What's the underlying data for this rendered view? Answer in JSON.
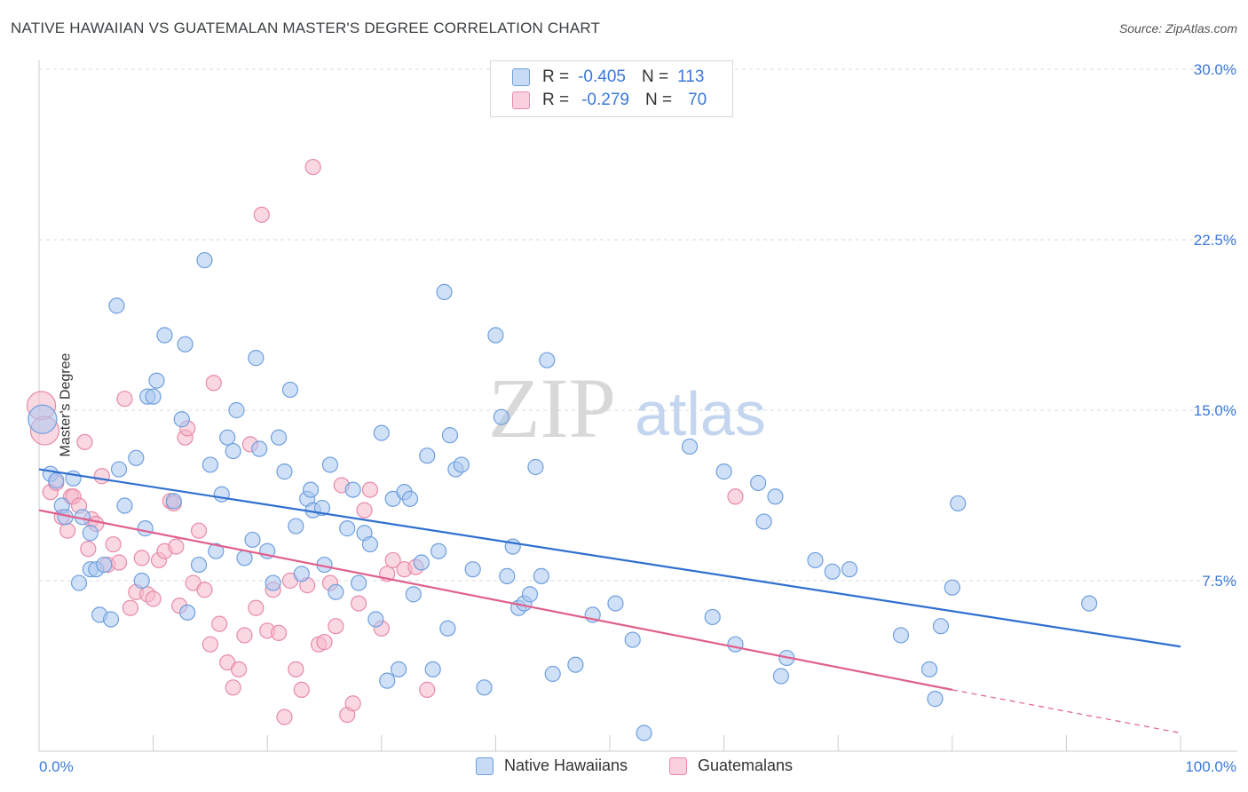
{
  "title": "NATIVE HAWAIIAN VS GUATEMALAN MASTER'S DEGREE CORRELATION CHART",
  "source": "Source: ZipAtlas.com",
  "watermark": {
    "zip": "ZIP",
    "atlas": "atlas"
  },
  "legend_top": {
    "rows": [
      {
        "r_label": "R =",
        "r_value": "-0.405",
        "n_label": "N =",
        "n_value": "113"
      },
      {
        "r_label": "R =",
        "r_value": "-0.279",
        "n_label": "N =",
        "n_value": "70"
      }
    ]
  },
  "colors": {
    "blue_fill": "#aac8f0",
    "blue_stroke": "#6f9fde",
    "blue_line": "#2f6fcf",
    "pink_fill": "#f5b8cb",
    "pink_stroke": "#e88aa8",
    "pink_line": "#e0608c",
    "axis_text": "#3b78d8",
    "grid": "#d9d9d9"
  },
  "chart_data": {
    "type": "scatter",
    "title": "NATIVE HAWAIIAN VS GUATEMALAN MASTER'S DEGREE CORRELATION CHART",
    "xlabel": "",
    "ylabel": "Master's Degree",
    "xlim": [
      0,
      100
    ],
    "ylim": [
      0,
      30
    ],
    "x_tick_labels": [
      "0.0%",
      "100.0%"
    ],
    "y_ticks": [
      7.5,
      15.0,
      22.5,
      30.0
    ],
    "y_tick_labels": [
      "7.5%",
      "15.0%",
      "22.5%",
      "30.0%"
    ],
    "grid": "horizontal dashed",
    "legend_placement": "top-center and bottom",
    "series": [
      {
        "name": "Native Hawaiians",
        "r": -0.405,
        "n": 113,
        "trend": {
          "x": [
            0,
            100
          ],
          "y": [
            12.4,
            4.6
          ]
        },
        "points": [
          [
            0.3,
            14.6
          ],
          [
            1,
            12.2
          ],
          [
            1.5,
            11.9
          ],
          [
            2,
            10.8
          ],
          [
            2.3,
            10.3
          ],
          [
            3,
            12
          ],
          [
            3.5,
            7.4
          ],
          [
            3.8,
            10.3
          ],
          [
            4.5,
            9.6
          ],
          [
            4.5,
            8
          ],
          [
            5,
            8
          ],
          [
            5.3,
            6
          ],
          [
            5.7,
            8.2
          ],
          [
            6.3,
            5.8
          ],
          [
            6.8,
            19.6
          ],
          [
            7,
            12.4
          ],
          [
            7.5,
            10.8
          ],
          [
            8.5,
            12.9
          ],
          [
            9,
            7.5
          ],
          [
            9.3,
            9.8
          ],
          [
            9.5,
            15.6
          ],
          [
            10,
            15.6
          ],
          [
            10.3,
            16.3
          ],
          [
            11,
            18.3
          ],
          [
            11.8,
            11
          ],
          [
            12.5,
            14.6
          ],
          [
            12.8,
            17.9
          ],
          [
            13,
            6.1
          ],
          [
            14,
            8.2
          ],
          [
            14.5,
            21.6
          ],
          [
            15,
            12.6
          ],
          [
            15.5,
            8.8
          ],
          [
            16,
            11.3
          ],
          [
            16.5,
            13.8
          ],
          [
            17,
            13.2
          ],
          [
            17.3,
            15
          ],
          [
            18,
            8.5
          ],
          [
            18.7,
            9.3
          ],
          [
            19,
            17.3
          ],
          [
            19.3,
            13.3
          ],
          [
            20,
            8.8
          ],
          [
            20.5,
            7.4
          ],
          [
            21,
            13.8
          ],
          [
            21.5,
            12.3
          ],
          [
            22,
            15.9
          ],
          [
            22.5,
            9.9
          ],
          [
            23,
            7.8
          ],
          [
            23.5,
            11.1
          ],
          [
            23.8,
            11.5
          ],
          [
            24,
            10.6
          ],
          [
            24.8,
            10.7
          ],
          [
            25,
            8.2
          ],
          [
            25.5,
            12.6
          ],
          [
            26,
            7
          ],
          [
            27,
            9.8
          ],
          [
            27.5,
            11.5
          ],
          [
            28,
            7.4
          ],
          [
            28.5,
            9.6
          ],
          [
            29,
            9.1
          ],
          [
            29.5,
            5.8
          ],
          [
            30,
            14
          ],
          [
            30.5,
            3.1
          ],
          [
            31,
            11.1
          ],
          [
            31.5,
            3.6
          ],
          [
            32,
            11.4
          ],
          [
            32.5,
            11.1
          ],
          [
            32.8,
            6.9
          ],
          [
            33.5,
            8.3
          ],
          [
            34,
            13
          ],
          [
            34.5,
            3.6
          ],
          [
            35,
            8.8
          ],
          [
            35.5,
            20.2
          ],
          [
            35.8,
            5.4
          ],
          [
            36,
            13.9
          ],
          [
            36.5,
            12.4
          ],
          [
            37,
            12.6
          ],
          [
            38,
            8
          ],
          [
            39,
            2.8
          ],
          [
            40,
            18.3
          ],
          [
            40.5,
            14.7
          ],
          [
            41,
            7.7
          ],
          [
            41.5,
            9
          ],
          [
            42,
            6.3
          ],
          [
            42.5,
            6.5
          ],
          [
            43,
            6.9
          ],
          [
            43.5,
            12.5
          ],
          [
            44,
            7.7
          ],
          [
            44.5,
            17.2
          ],
          [
            45,
            3.4
          ],
          [
            47,
            3.8
          ],
          [
            48.5,
            6
          ],
          [
            50.5,
            6.5
          ],
          [
            52,
            4.9
          ],
          [
            53,
            0.8
          ],
          [
            57,
            13.4
          ],
          [
            59,
            5.9
          ],
          [
            60,
            12.3
          ],
          [
            61,
            4.7
          ],
          [
            63,
            11.8
          ],
          [
            63.5,
            10.1
          ],
          [
            64.5,
            11.2
          ],
          [
            65,
            3.3
          ],
          [
            65.5,
            4.1
          ],
          [
            68,
            8.4
          ],
          [
            69.5,
            7.9
          ],
          [
            71,
            8
          ],
          [
            75.5,
            5.1
          ],
          [
            78,
            3.6
          ],
          [
            78.5,
            2.3
          ],
          [
            79,
            5.5
          ],
          [
            80,
            7.2
          ],
          [
            80.5,
            10.9
          ],
          [
            92,
            6.5
          ]
        ]
      },
      {
        "name": "Guatemalans",
        "r": -0.279,
        "n": 70,
        "trend": {
          "x": [
            0,
            80
          ],
          "y": [
            10.6,
            2.7
          ]
        },
        "trend_dashed": {
          "x": [
            80,
            100
          ],
          "y": [
            2.7,
            0.8
          ]
        },
        "points": [
          [
            0.2,
            15.2
          ],
          [
            0.5,
            14.1
          ],
          [
            1,
            11.4
          ],
          [
            1.5,
            11.8
          ],
          [
            2,
            10.3
          ],
          [
            2.5,
            9.7
          ],
          [
            2.8,
            11.2
          ],
          [
            3,
            11.2
          ],
          [
            3.5,
            10.8
          ],
          [
            4,
            13.6
          ],
          [
            4.3,
            8.9
          ],
          [
            4.6,
            10.2
          ],
          [
            5,
            10
          ],
          [
            5.5,
            12.1
          ],
          [
            6,
            8.2
          ],
          [
            6.5,
            9.1
          ],
          [
            7,
            8.3
          ],
          [
            7.5,
            15.5
          ],
          [
            8,
            6.3
          ],
          [
            8.5,
            7
          ],
          [
            9,
            8.5
          ],
          [
            9.5,
            6.9
          ],
          [
            10,
            6.7
          ],
          [
            10.5,
            8.4
          ],
          [
            11,
            8.8
          ],
          [
            11.5,
            11
          ],
          [
            11.8,
            10.9
          ],
          [
            12,
            9
          ],
          [
            12.3,
            6.4
          ],
          [
            12.8,
            13.8
          ],
          [
            13,
            14.2
          ],
          [
            13.5,
            7.4
          ],
          [
            14,
            9.7
          ],
          [
            14.5,
            7.1
          ],
          [
            15,
            4.7
          ],
          [
            15.3,
            16.2
          ],
          [
            15.8,
            5.6
          ],
          [
            16.5,
            3.9
          ],
          [
            17,
            2.8
          ],
          [
            17.5,
            3.6
          ],
          [
            18,
            5.1
          ],
          [
            18.5,
            13.5
          ],
          [
            19,
            6.3
          ],
          [
            19.5,
            23.6
          ],
          [
            20,
            5.3
          ],
          [
            20.5,
            7.1
          ],
          [
            21,
            5.2
          ],
          [
            21.5,
            1.5
          ],
          [
            22,
            7.5
          ],
          [
            22.5,
            3.6
          ],
          [
            23,
            2.7
          ],
          [
            23.5,
            7.3
          ],
          [
            24,
            25.7
          ],
          [
            24.5,
            4.7
          ],
          [
            25,
            4.8
          ],
          [
            25.5,
            7.4
          ],
          [
            26,
            5.5
          ],
          [
            26.5,
            11.7
          ],
          [
            27,
            1.6
          ],
          [
            27.5,
            2.1
          ],
          [
            28,
            6.5
          ],
          [
            28.5,
            10.6
          ],
          [
            29,
            11.5
          ],
          [
            30,
            5.4
          ],
          [
            30.5,
            7.8
          ],
          [
            31,
            8.4
          ],
          [
            32,
            8
          ],
          [
            33,
            8.1
          ],
          [
            34,
            2.7
          ],
          [
            61,
            11.2
          ]
        ]
      }
    ]
  },
  "bottom_legend": [
    "Native Hawaiians",
    "Guatemalans"
  ]
}
